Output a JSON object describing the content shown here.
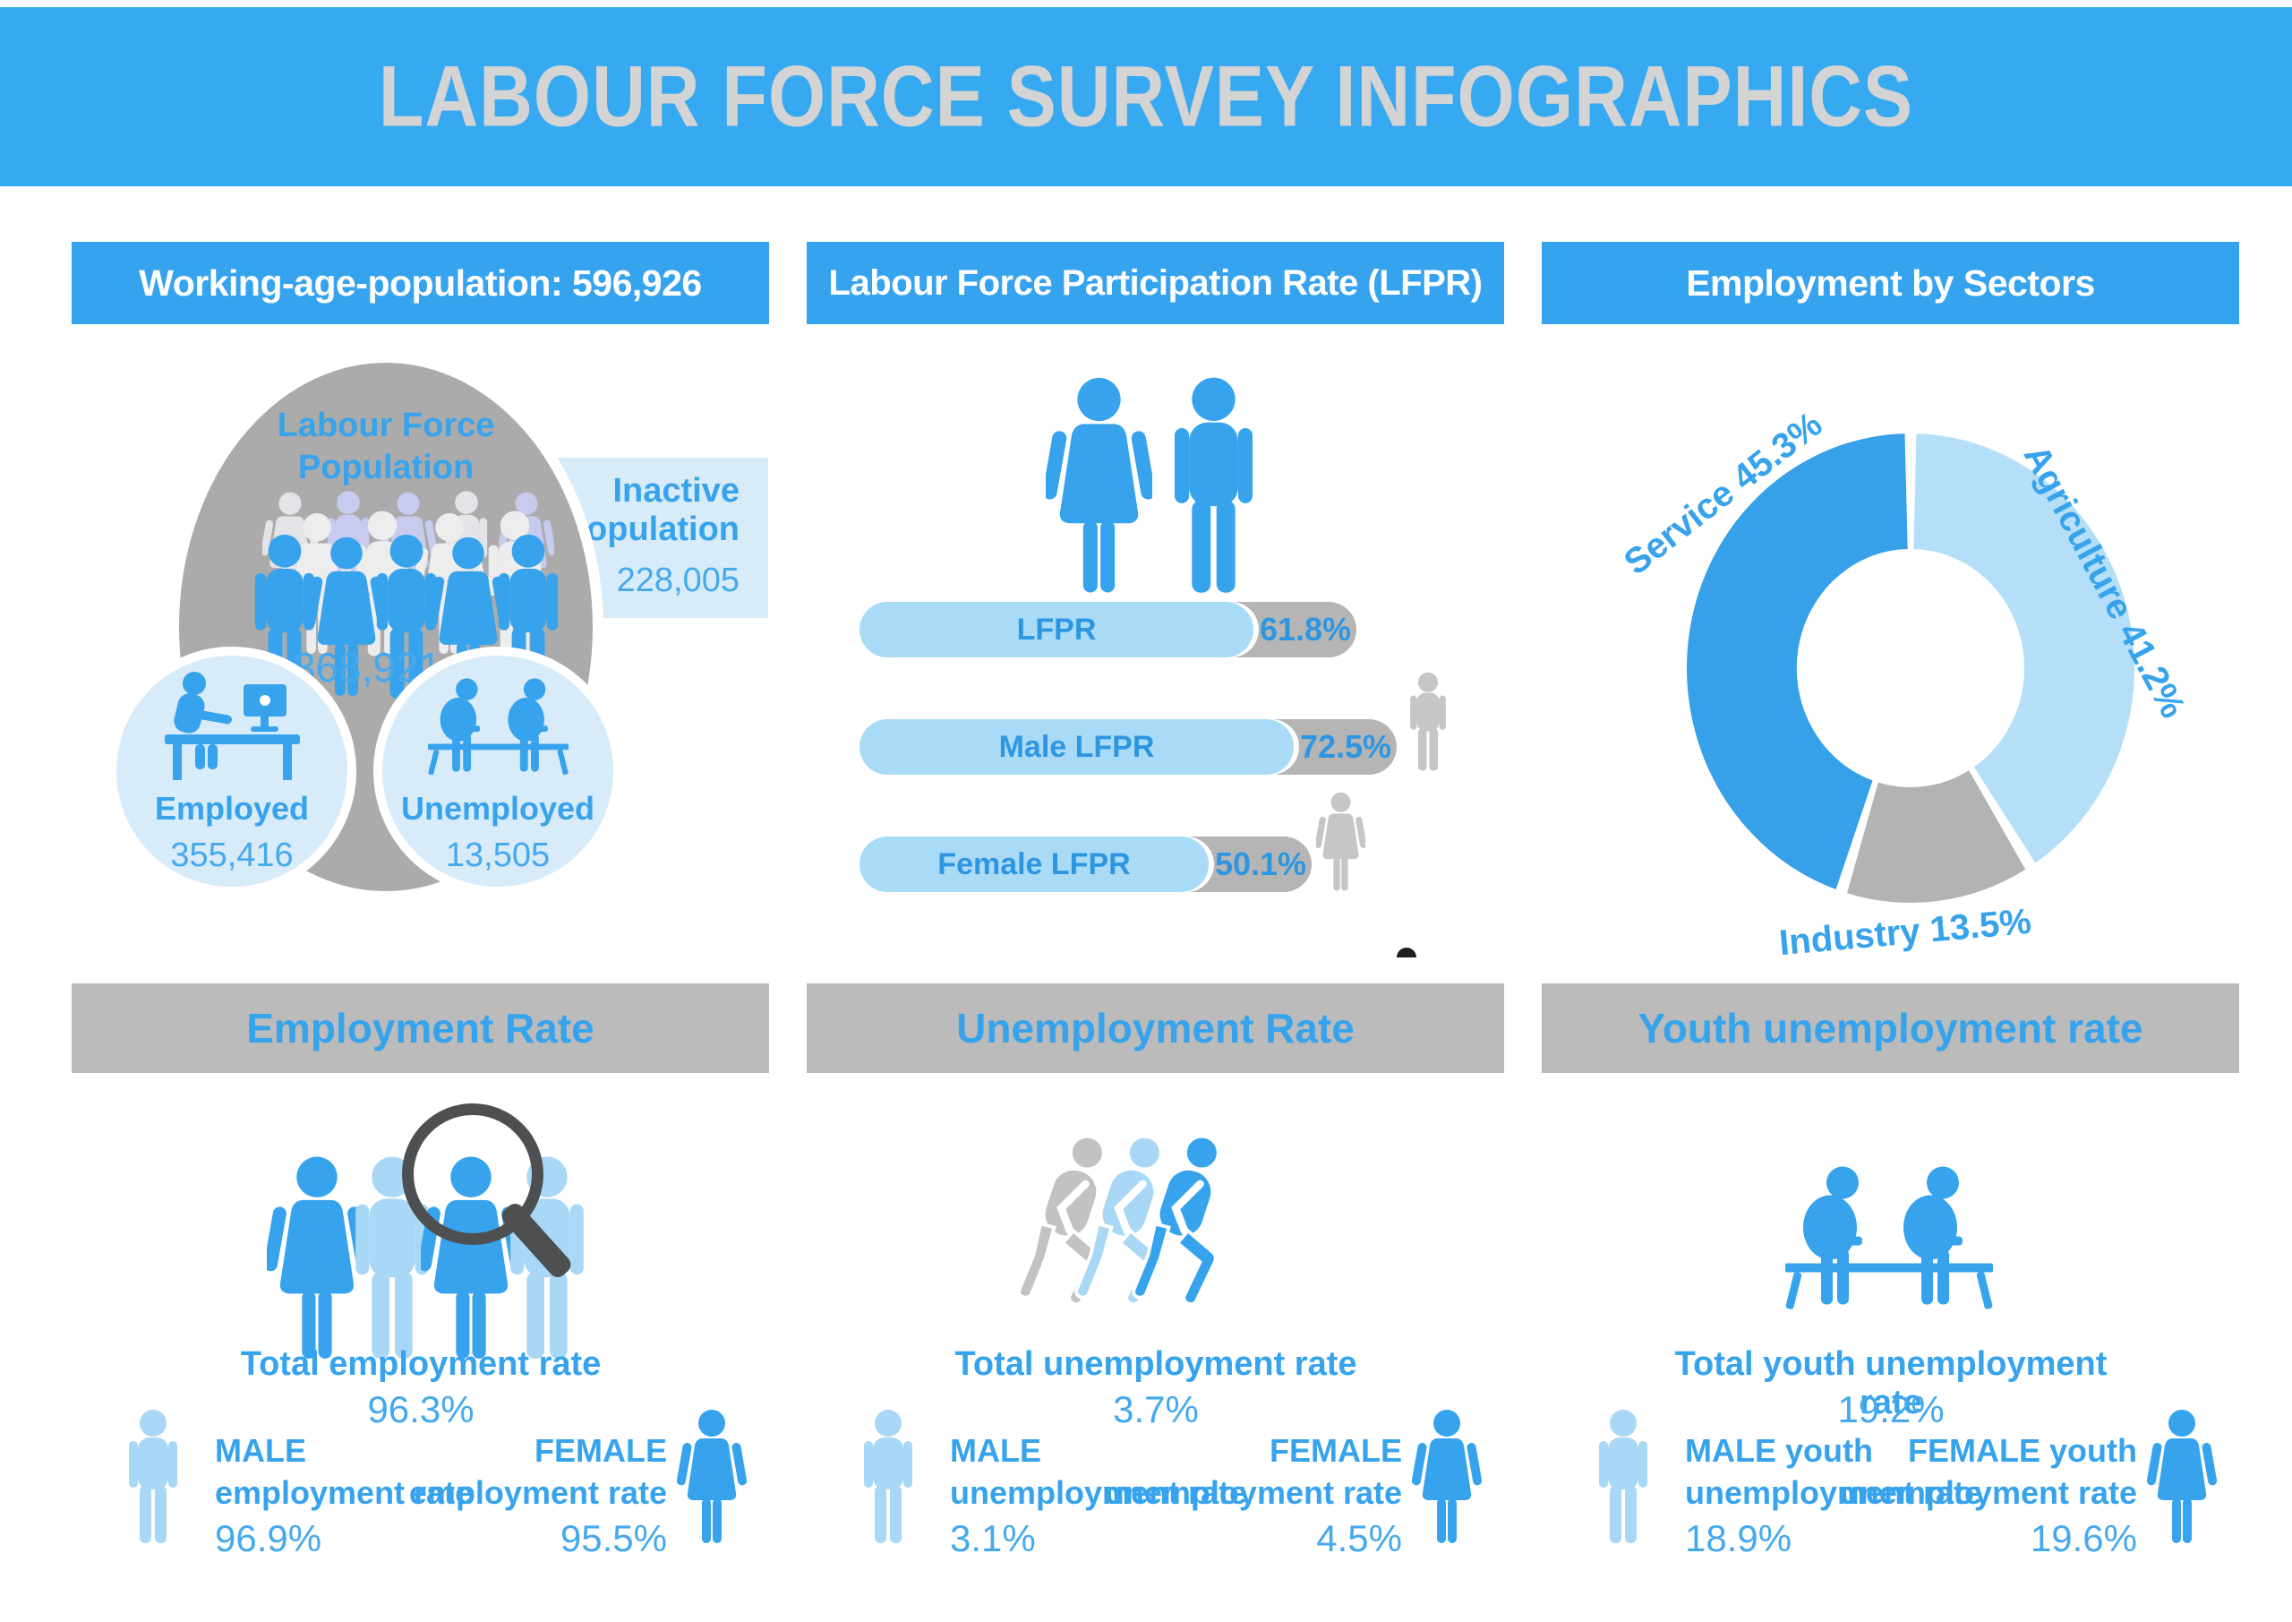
{
  "title": "LABOUR FORCE SURVEY INFOGRAPHICS",
  "colors": {
    "banner_blue": "#36A9F1",
    "panel_header_blue": "#36A3EE",
    "panel_header_gray": "#BBBBBB",
    "accent_blue": "#36A3EC",
    "light_blue": "#A9DBF7",
    "pale_blue": "#D8EBF8",
    "gray": "#ABABAB",
    "dark_gray": "#4E4F51",
    "lavender": "#C7CBEE"
  },
  "icons": {
    "male": "standing-male-silhouette",
    "female": "standing-female-silhouette",
    "employed": "person-working-at-desk",
    "unemployed": "two-people-sitting-on-bench",
    "walker": "slumped-walking-person",
    "magnifier": "magnifying-glass-over-person",
    "crowd": "group-of-people"
  },
  "working_age": {
    "header": "Working-age-population: 596,926",
    "labour_force_label_1": "Labour Force",
    "labour_force_label_2": "Population",
    "labour_force_value": "368,921",
    "inactive_label_1": "Inactive",
    "inactive_label_2": "Population",
    "inactive_value": "228,005",
    "employed_label": "Employed",
    "employed_value": "355,416",
    "unemployed_label": "Unemployed",
    "unemployed_value": "13,505"
  },
  "lfpr": {
    "header": "Labour Force Participation Rate (LFPR)"
  },
  "sectors": {
    "header": "Employment by Sectors"
  },
  "employment_rate": {
    "header": "Employment Rate",
    "total_label": "Total employment rate",
    "total_value": "96.3%",
    "male_label_1": "MALE",
    "male_label_2": "employment rate",
    "male_value": "96.9%",
    "female_label_1": "FEMALE",
    "female_label_2": "employment rate",
    "female_value": "95.5%"
  },
  "unemployment_rate": {
    "header": "Unemployment Rate",
    "total_label": "Total unemployment rate",
    "total_value": "3.7%",
    "male_label_1": "MALE",
    "male_label_2": "unemployment rate",
    "male_value": "3.1%",
    "female_label_1": "FEMALE",
    "female_label_2": "unemployment rate",
    "female_value": "4.5%"
  },
  "youth_unemployment": {
    "header": "Youth unemployment rate",
    "total_label": "Total youth unemployment rate",
    "total_value": "19.2%",
    "male_label_1": "MALE youth",
    "male_label_2": "unemployment rate",
    "male_value": "18.9%",
    "female_label_1": "FEMALE youth",
    "female_label_2": "unemployment rate",
    "female_value": "19.6%"
  },
  "chart_data": [
    {
      "type": "pie",
      "variant": "donut",
      "title": "Employment by Sectors",
      "direction": "clockwise",
      "start_angle_deg": 1.5,
      "gap_deg": 3,
      "inner_radius_ratio": 0.5,
      "legend_position": "around-ring",
      "slices": [
        {
          "label": "Agriculture",
          "value": 41.2,
          "display": "Agriculture 41.2%",
          "color": "#B5DFF8"
        },
        {
          "label": "Industry",
          "value": 13.5,
          "display": "Industry 13.5%",
          "color": "#B3B3B3"
        },
        {
          "label": "Service",
          "value": 45.3,
          "display": "Service 45.3%",
          "color": "#36A0E8"
        }
      ]
    },
    {
      "type": "bar",
      "orientation": "horizontal",
      "title": "Labour Force Participation Rate (LFPR)",
      "unit": "%",
      "xlim": [
        0,
        100
      ],
      "categories": [
        "LFPR",
        "Male LFPR",
        "Female LFPR"
      ],
      "values": [
        61.8,
        72.5,
        50.1
      ],
      "labels": [
        "61.8%",
        "72.5%",
        "50.1%"
      ],
      "icons": [
        null,
        "male",
        "female"
      ]
    }
  ]
}
